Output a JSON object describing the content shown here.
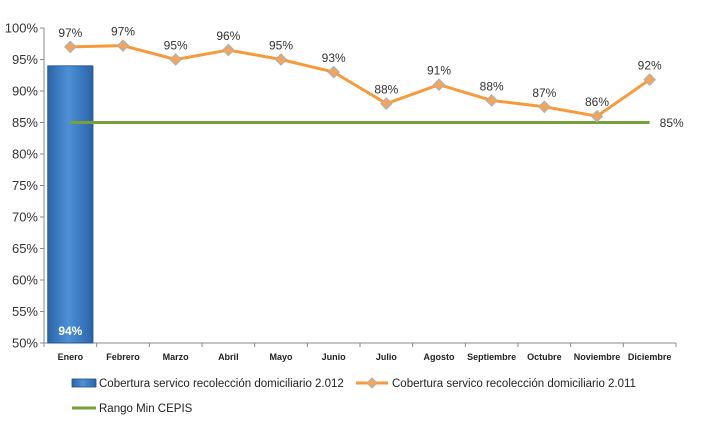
{
  "chart_data": {
    "type": "bar",
    "categories": [
      "Enero",
      "Febrero",
      "Marzo",
      "Abril",
      "Mayo",
      "Junio",
      "Julio",
      "Agosto",
      "Septiembre",
      "Octubre",
      "Noviembre",
      "Diciembre"
    ],
    "ylim": [
      50,
      100
    ],
    "yticks": [
      "50%",
      "55%",
      "60%",
      "65%",
      "70%",
      "75%",
      "80%",
      "85%",
      "90%",
      "95%",
      "100%"
    ],
    "ytick_values": [
      50,
      55,
      60,
      65,
      70,
      75,
      80,
      85,
      90,
      95,
      100
    ],
    "grid": false,
    "legend_position": "bottom-left",
    "series": [
      {
        "name": "Cobertura servico recolección domiciliario 2.012",
        "type": "bar",
        "color": "#3d7cc4",
        "values": [
          94,
          null,
          null,
          null,
          null,
          null,
          null,
          null,
          null,
          null,
          null,
          null
        ],
        "labels": [
          "94%",
          null,
          null,
          null,
          null,
          null,
          null,
          null,
          null,
          null,
          null,
          null
        ]
      },
      {
        "name": "Cobertura servico recolección domiciliario 2.011",
        "type": "line",
        "color": "#f79a3c",
        "marker": "diamond",
        "values": [
          97,
          97.2,
          95,
          96.5,
          95,
          93,
          88,
          91,
          88.5,
          87.5,
          86,
          91.8
        ],
        "labels": [
          "97%",
          "97%",
          "95%",
          "96%",
          "95%",
          "93%",
          "88%",
          "91%",
          "88%",
          "87%",
          "86%",
          "92%"
        ]
      },
      {
        "name": "Rango Min CEPIS",
        "type": "line",
        "color": "#77a03b",
        "values": [
          85,
          85,
          85,
          85,
          85,
          85,
          85,
          85,
          85,
          85,
          85,
          85
        ],
        "end_label": "85%"
      }
    ]
  }
}
